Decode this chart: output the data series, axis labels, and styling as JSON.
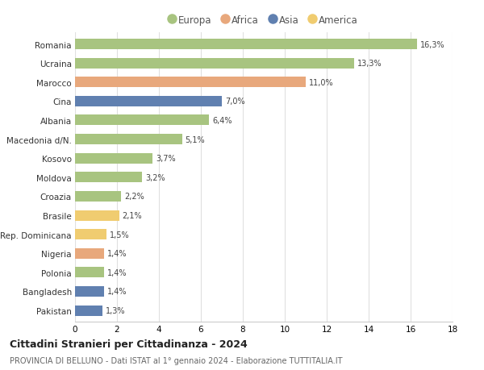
{
  "countries": [
    "Romania",
    "Ucraina",
    "Marocco",
    "Cina",
    "Albania",
    "Macedonia d/N.",
    "Kosovo",
    "Moldova",
    "Croazia",
    "Brasile",
    "Rep. Dominicana",
    "Nigeria",
    "Polonia",
    "Bangladesh",
    "Pakistan"
  ],
  "values": [
    16.3,
    13.3,
    11.0,
    7.0,
    6.4,
    5.1,
    3.7,
    3.2,
    2.2,
    2.1,
    1.5,
    1.4,
    1.4,
    1.4,
    1.3
  ],
  "labels": [
    "16,3%",
    "13,3%",
    "11,0%",
    "7,0%",
    "6,4%",
    "5,1%",
    "3,7%",
    "3,2%",
    "2,2%",
    "2,1%",
    "1,5%",
    "1,4%",
    "1,4%",
    "1,4%",
    "1,3%"
  ],
  "continent": [
    "Europa",
    "Europa",
    "Africa",
    "Asia",
    "Europa",
    "Europa",
    "Europa",
    "Europa",
    "Europa",
    "America",
    "America",
    "Africa",
    "Europa",
    "Asia",
    "Asia"
  ],
  "colors": {
    "Europa": "#a8c480",
    "Africa": "#e8a87c",
    "Asia": "#6080b0",
    "America": "#f0cc70"
  },
  "legend_order": [
    "Europa",
    "Africa",
    "Asia",
    "America"
  ],
  "title": "Cittadini Stranieri per Cittadinanza - 2024",
  "subtitle": "PROVINCIA DI BELLUNO - Dati ISTAT al 1° gennaio 2024 - Elaborazione TUTTITALIA.IT",
  "xlim": [
    0,
    18
  ],
  "xticks": [
    0,
    2,
    4,
    6,
    8,
    10,
    12,
    14,
    16,
    18
  ],
  "background_color": "#ffffff",
  "grid_color": "#e0e0e0",
  "bar_height": 0.55
}
